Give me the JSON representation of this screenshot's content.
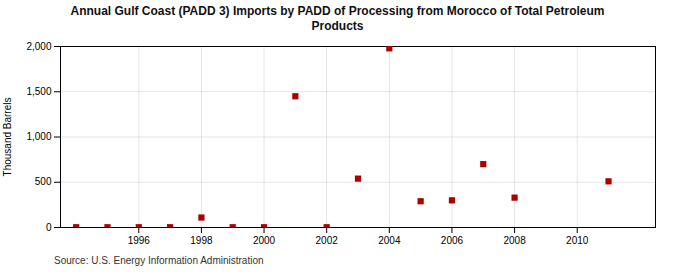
{
  "chart_data": {
    "type": "scatter",
    "title": "Annual Gulf Coast (PADD 3) Imports by PADD of Processing from Morocco of Total Petroleum\nProducts",
    "ylabel": "Thousand Barrels",
    "source": "Source: U.S. Energy Information Administration",
    "x": [
      1994,
      1995,
      1996,
      1997,
      1998,
      1999,
      2000,
      2001,
      2002,
      2003,
      2004,
      2005,
      2006,
      2007,
      2008,
      2011
    ],
    "values": [
      3,
      3,
      3,
      3,
      110,
      3,
      3,
      1450,
      3,
      540,
      1980,
      290,
      300,
      700,
      330,
      510
    ],
    "color": "#aa0000",
    "marker": "square",
    "xlim": [
      1993.5,
      2012.5
    ],
    "xticks": [
      1996,
      1998,
      2000,
      2002,
      2004,
      2006,
      2008,
      2010
    ],
    "ylim": [
      0,
      2000
    ],
    "yticks": [
      0,
      500,
      {
        "value": 1000,
        "label": "1,000"
      },
      {
        "value": 1500,
        "label": "1,500"
      },
      {
        "value": 2000,
        "label": "2,000"
      }
    ],
    "grid": true
  }
}
